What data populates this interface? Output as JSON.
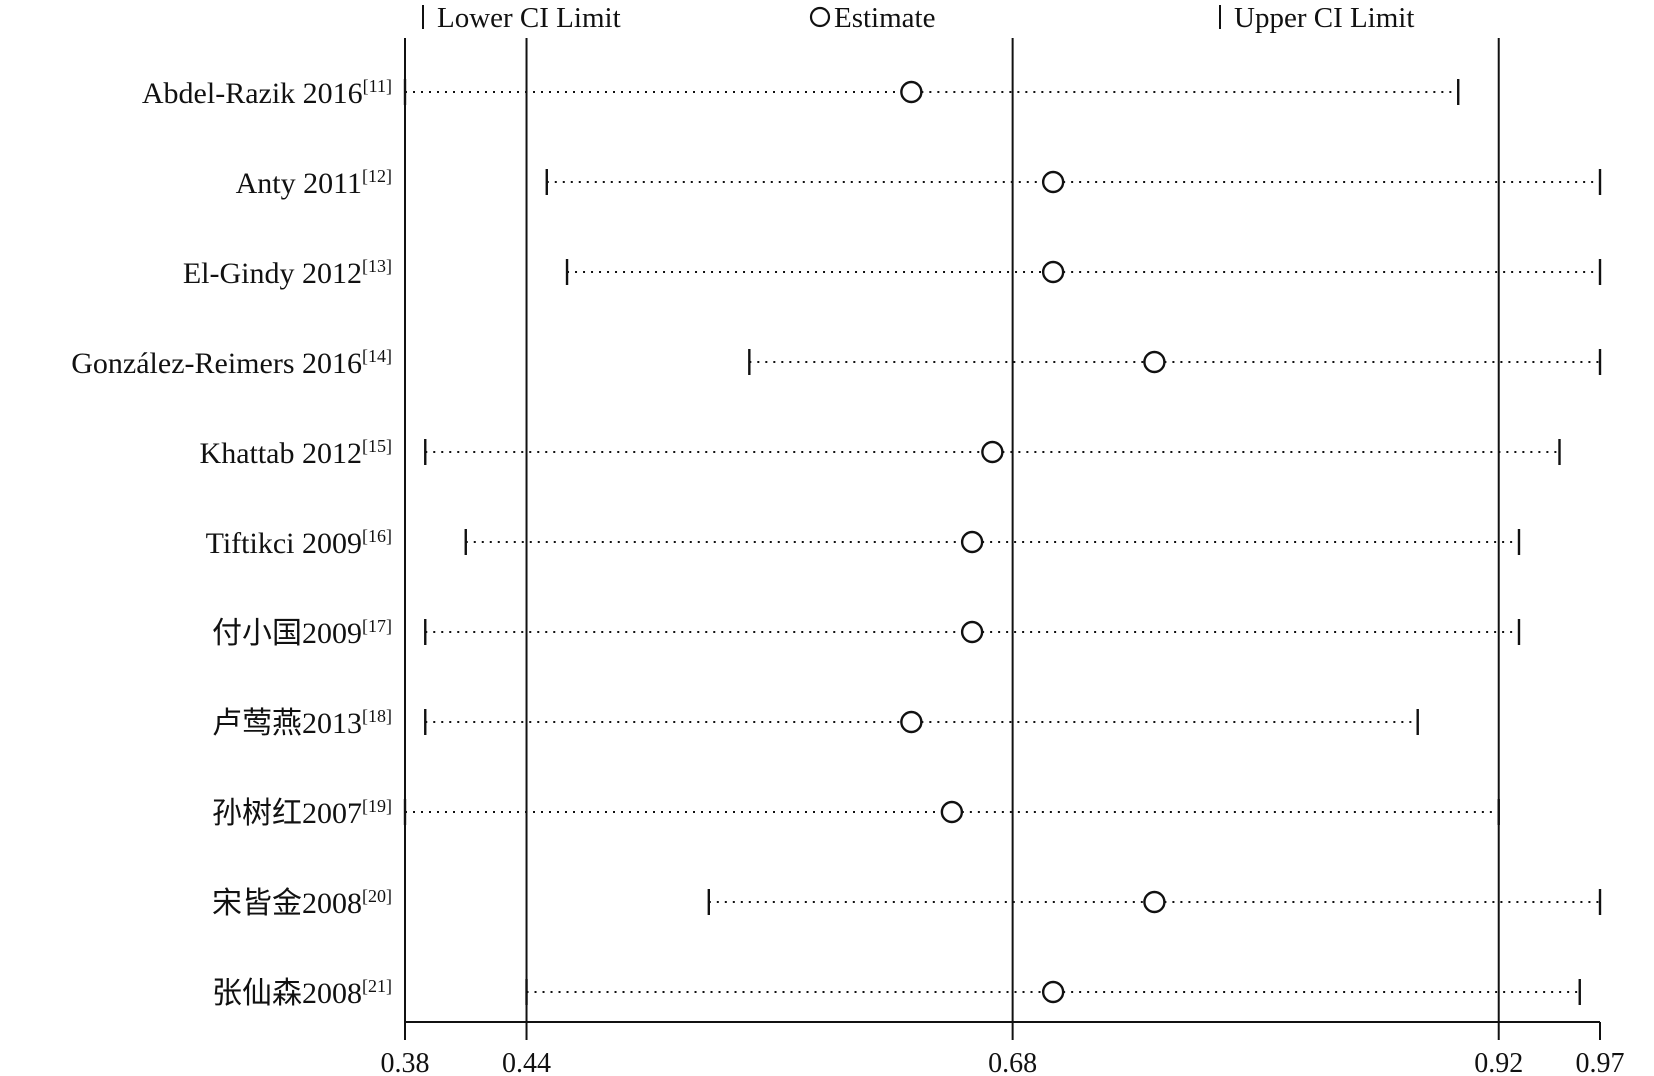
{
  "chart_data": {
    "type": "forest",
    "legend": {
      "lower": "Lower CI Limit",
      "estimate": "Estimate",
      "upper": "Upper CI Limit"
    },
    "x_ticks": [
      0.38,
      0.44,
      0.68,
      0.92,
      0.97
    ],
    "x_tick_labels": [
      "0.38",
      "0.44",
      "0.68",
      "0.92",
      "0.97"
    ],
    "xlim": [
      0.38,
      0.97
    ],
    "reference_lines": [
      0.38,
      0.44,
      0.68,
      0.92
    ],
    "studies": [
      {
        "name": "Abdel-Razik 2016",
        "ref": "[11]",
        "estimate": 0.63,
        "lower": 0.38,
        "upper": 0.9
      },
      {
        "name": "Anty 2011",
        "ref": "[12]",
        "estimate": 0.7,
        "lower": 0.45,
        "upper": 0.97
      },
      {
        "name": "El-Gindy 2012",
        "ref": "[13]",
        "estimate": 0.7,
        "lower": 0.46,
        "upper": 0.97
      },
      {
        "name": "González-Reimers 2016",
        "ref": "[14]",
        "estimate": 0.75,
        "lower": 0.55,
        "upper": 0.98
      },
      {
        "name": "Khattab 2012",
        "ref": "[15]",
        "estimate": 0.67,
        "lower": 0.39,
        "upper": 0.95
      },
      {
        "name": "Tiftikci 2009",
        "ref": "[16]",
        "estimate": 0.66,
        "lower": 0.41,
        "upper": 0.93
      },
      {
        "name": "付小国2009",
        "ref": "[17]",
        "estimate": 0.66,
        "lower": 0.39,
        "upper": 0.93
      },
      {
        "name": "卢莺燕2013",
        "ref": "[18]",
        "estimate": 0.63,
        "lower": 0.39,
        "upper": 0.88
      },
      {
        "name": "孙树红2007",
        "ref": "[19]",
        "estimate": 0.65,
        "lower": 0.38,
        "upper": 0.92
      },
      {
        "name": "宋皆金2008",
        "ref": "[20]",
        "estimate": 0.75,
        "lower": 0.53,
        "upper": 0.98
      },
      {
        "name": "张仙森2008",
        "ref": "[21]",
        "estimate": 0.7,
        "lower": 0.44,
        "upper": 0.96
      }
    ]
  }
}
